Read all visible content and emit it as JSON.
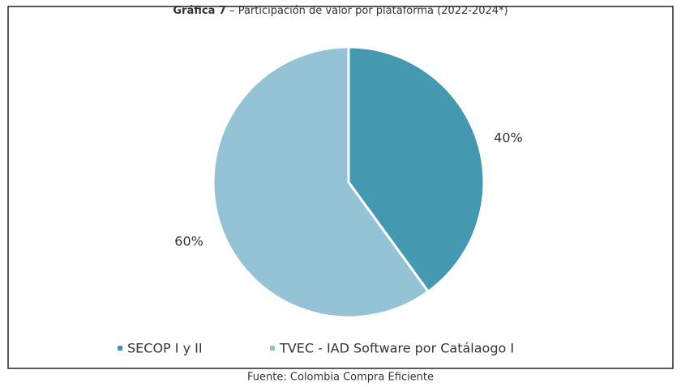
{
  "chart_data": {
    "type": "pie",
    "title": {
      "label": "Gráfica 7",
      "text": "– Participación de valor por plataforma (2022-2024*)"
    },
    "categories": [
      "SECOP I y II",
      "TVEC - IAD Software por Catálaogo I"
    ],
    "values": [
      40,
      60
    ],
    "value_labels": [
      "40%",
      "60%"
    ],
    "colors": [
      "#4499b0",
      "#93c3d5"
    ],
    "legend": "bottom",
    "source": "Fuente: Colombia Compra Eficiente"
  }
}
